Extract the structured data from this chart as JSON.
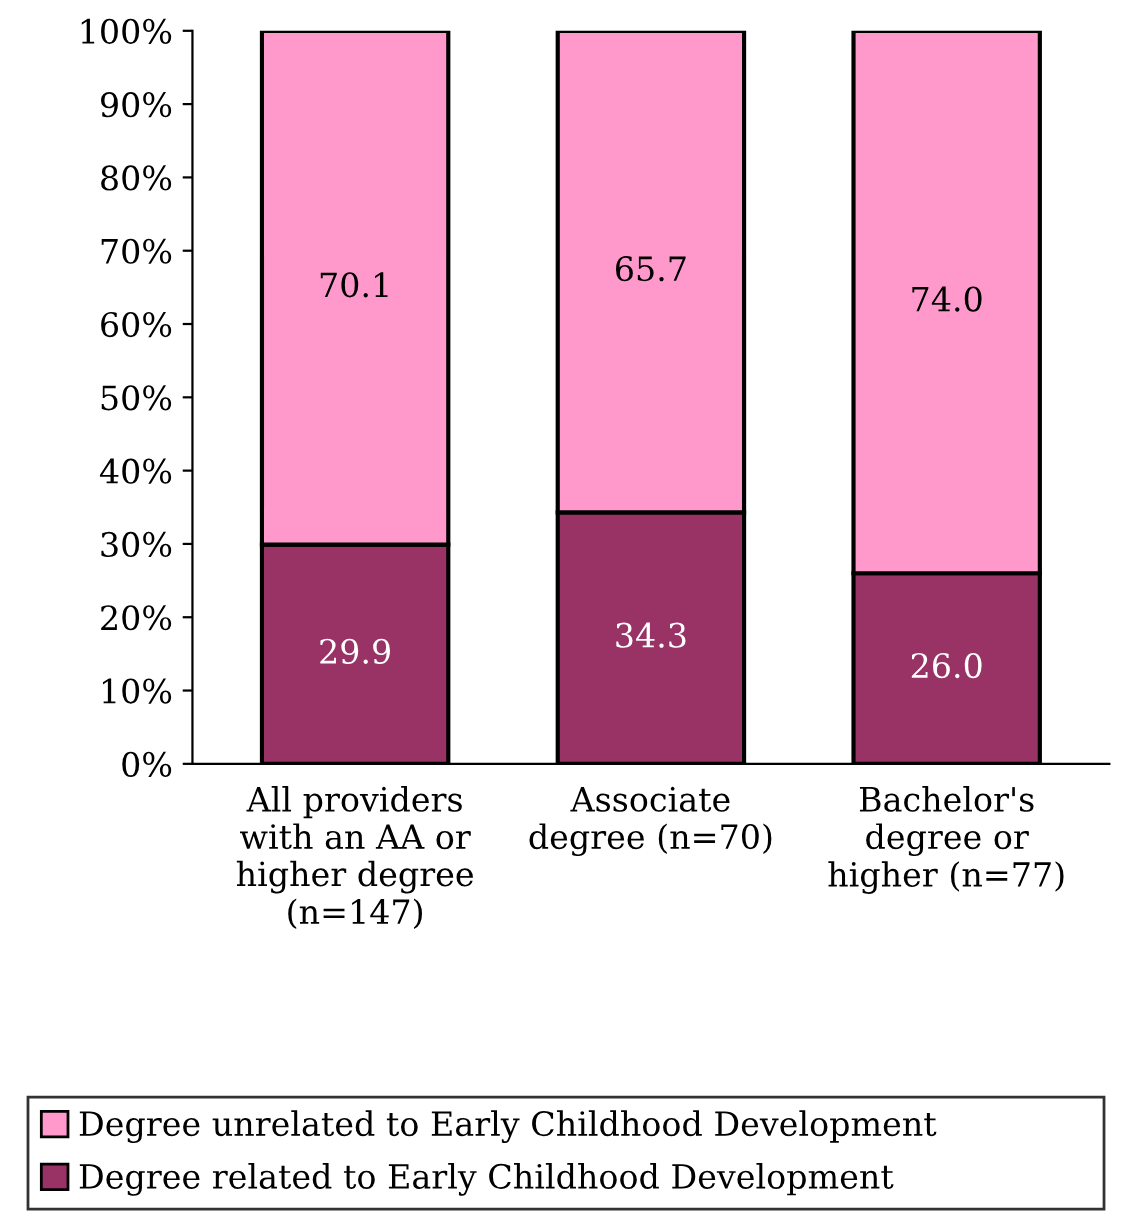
{
  "chart_data": {
    "type": "bar",
    "stacked": true,
    "categories": [
      "All providers\nwith an AA or\nhigher degree\n(n=147)",
      "Associate\ndegree (n=70)",
      "Bachelor's\ndegree or\nhigher (n=77)"
    ],
    "series": [
      {
        "name": "Degree related to Early Childhood Development",
        "color": "#993366",
        "values": [
          29.9,
          34.3,
          26.0
        ],
        "value_labels": [
          "29.9",
          "34.3",
          "26.0"
        ]
      },
      {
        "name": "Degree unrelated to Early Childhood Development",
        "color": "#ff99cc",
        "values": [
          70.1,
          65.7,
          74.0
        ],
        "value_labels": [
          "70.1",
          "65.7",
          "74.0"
        ]
      }
    ],
    "ylim": [
      0,
      100
    ],
    "yticks": [
      {
        "value": 0,
        "label": "0%"
      },
      {
        "value": 10,
        "label": "10%"
      },
      {
        "value": 20,
        "label": "20%"
      },
      {
        "value": 30,
        "label": "30%"
      },
      {
        "value": 40,
        "label": "40%"
      },
      {
        "value": 50,
        "label": "50%"
      },
      {
        "value": 60,
        "label": "60%"
      },
      {
        "value": 70,
        "label": "70%"
      },
      {
        "value": 80,
        "label": "80%"
      },
      {
        "value": 90,
        "label": "90%"
      },
      {
        "value": 100,
        "label": "100%"
      }
    ],
    "grid": false,
    "legend": "bottom"
  }
}
